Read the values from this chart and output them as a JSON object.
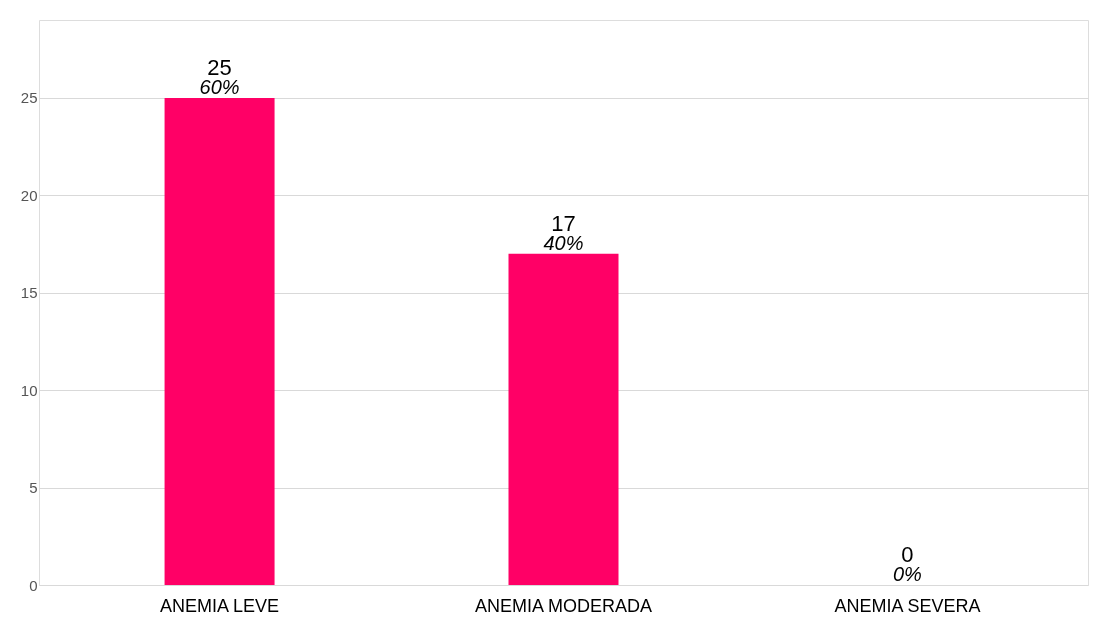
{
  "chart_data": {
    "type": "bar",
    "categories": [
      "ANEMIA LEVE",
      "ANEMIA MODERADA",
      "ANEMIA SEVERA"
    ],
    "values": [
      25,
      17,
      0
    ],
    "color": "#ff0066",
    "ylim": [
      0,
      29
    ],
    "yticks": [
      0,
      5,
      10,
      15,
      20,
      25
    ],
    "grid": "y",
    "data_labels": true,
    "annotations": [
      {
        "text": "60%",
        "x": "ANEMIA LEVE",
        "y": 25
      },
      {
        "text": "40%",
        "x": "ANEMIA MODERADA",
        "y": 17
      },
      {
        "text": "0%",
        "x": "ANEMIA SEVERA",
        "y": 0
      }
    ]
  }
}
